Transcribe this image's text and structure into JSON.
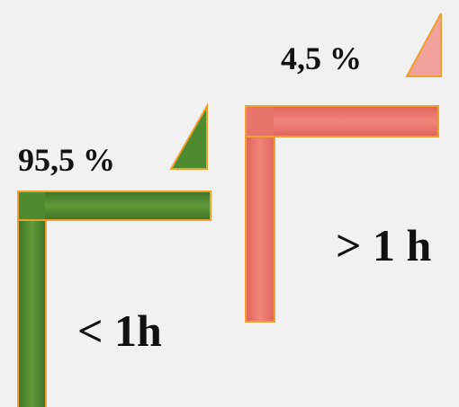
{
  "items": [
    {
      "percent": "95,5 %",
      "label": "< 1h"
    },
    {
      "percent": "4,5 %",
      "label": "> 1 h"
    }
  ]
}
